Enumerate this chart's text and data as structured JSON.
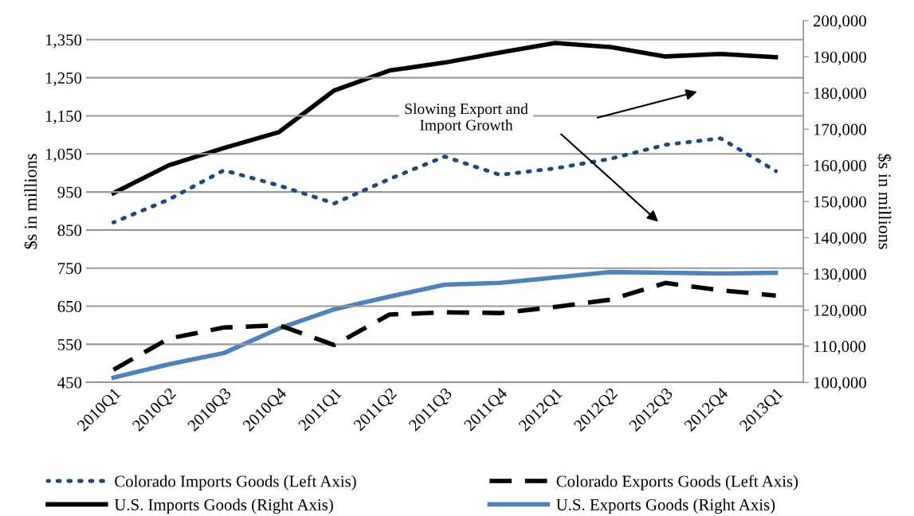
{
  "chart_data": {
    "type": "line",
    "ylabel": "$s in millions",
    "y2label": "$s in millions",
    "categories": [
      "2010Q1",
      "2010Q2",
      "2010Q3",
      "2010Q4",
      "2011Q1",
      "2011Q2",
      "2011Q3",
      "2011Q4",
      "2012Q1",
      "2012Q2",
      "2012Q3",
      "2012Q4",
      "2013Q1"
    ],
    "series": [
      {
        "name": "Colorado Imports Goods (Left Axis)",
        "color": "#1f497d",
        "line_style": "dotted",
        "values": [
          870,
          930,
          1007,
          967,
          920,
          984,
          1043,
          995,
          1012,
          1037,
          1074,
          1091,
          1005
        ]
      },
      {
        "name": "Colorado Exports Goods (Left Axis)",
        "color": "#000000",
        "line_style": "dashed",
        "values": [
          483,
          565,
          594,
          600,
          548,
          628,
          634,
          632,
          648,
          667,
          711,
          692,
          678
        ]
      },
      {
        "name": "U.S. Imports Goods (Right Axis)",
        "color": "#000000",
        "line_style": "solid",
        "axis": "y2",
        "values": [
          152300,
          160000,
          164800,
          169200,
          180700,
          186200,
          188400,
          191200,
          193800,
          192700,
          190100,
          190800,
          189900
        ]
      },
      {
        "name": "U.S. Exports Goods (Right Axis)",
        "color": "#4f81bd",
        "line_style": "solid",
        "axis": "y2",
        "values": [
          101300,
          105000,
          108100,
          114900,
          120200,
          123700,
          127000,
          127500,
          129000,
          130500,
          130300,
          130100,
          130300
        ]
      }
    ],
    "ylim": [
      450,
      1400
    ],
    "yticks": [
      {
        "value": 450,
        "label": "450"
      },
      {
        "value": 550,
        "label": "550"
      },
      {
        "value": 650,
        "label": "650"
      },
      {
        "value": 750,
        "label": "750"
      },
      {
        "value": 850,
        "label": "850"
      },
      {
        "value": 950,
        "label": "950"
      },
      {
        "value": 1050,
        "label": "1,050"
      },
      {
        "value": 1150,
        "label": "1,150"
      },
      {
        "value": 1250,
        "label": "1,250"
      },
      {
        "value": 1350,
        "label": "1,350"
      }
    ],
    "y2lim": [
      100000,
      200000
    ],
    "y2ticks": [
      {
        "value": 100000,
        "label": "100,000"
      },
      {
        "value": 110000,
        "label": "110,000"
      },
      {
        "value": 120000,
        "label": "120,000"
      },
      {
        "value": 130000,
        "label": "130,000"
      },
      {
        "value": 140000,
        "label": "140,000"
      },
      {
        "value": 150000,
        "label": "150,000"
      },
      {
        "value": 160000,
        "label": "160,000"
      },
      {
        "value": 170000,
        "label": "170,000"
      },
      {
        "value": 180000,
        "label": "180,000"
      },
      {
        "value": 190000,
        "label": "190,000"
      },
      {
        "value": 200000,
        "label": "200,000"
      }
    ],
    "annotations": [
      "Slowing Export and\nImport Growth"
    ],
    "grid": "y",
    "legend": "bottom",
    "marker": "none"
  }
}
